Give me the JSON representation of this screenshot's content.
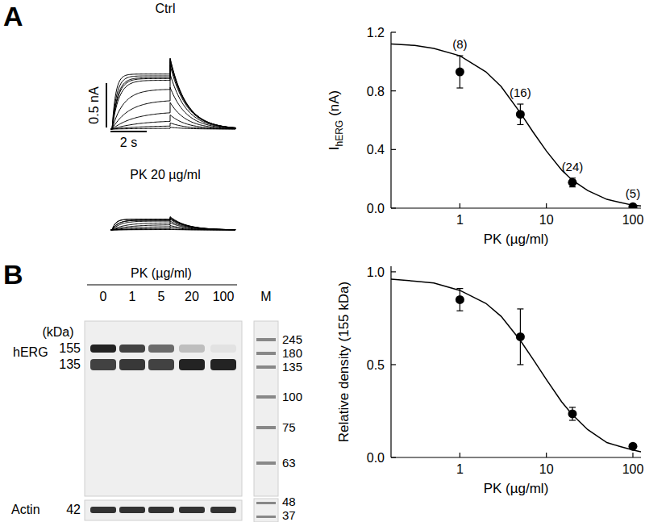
{
  "panel_labels": [
    "A",
    "B"
  ],
  "traces": {
    "conditions": [
      {
        "label": "Ctrl",
        "step_nA": [
          0.62,
          0.6,
          0.58,
          0.57,
          0.55,
          0.45,
          0.33,
          0.2,
          0.1,
          0.04,
          0.01
        ],
        "tail_nA": [
          0.8,
          0.79,
          0.78,
          0.76,
          0.72,
          0.62,
          0.47,
          0.3,
          0.16,
          0.07,
          0.02
        ]
      },
      {
        "label": "PK 20 µg/ml",
        "step_nA": [
          0.12,
          0.12,
          0.11,
          0.11,
          0.1,
          0.08,
          0.06,
          0.04,
          0.02,
          0.01,
          0.005
        ],
        "tail_nA": [
          0.15,
          0.14,
          0.14,
          0.13,
          0.12,
          0.1,
          0.08,
          0.05,
          0.03,
          0.01,
          0.005
        ]
      }
    ],
    "step_s": 3.2,
    "tail_s": 3.6,
    "scale_bar": {
      "current": 0.5,
      "current_label": "0.5 nA",
      "time": 2,
      "time_label": "2 s"
    }
  },
  "blot": {
    "treatment_label": "PK (µg/ml)",
    "lanes": [
      0,
      1,
      5,
      20,
      100
    ],
    "marker_label": "M",
    "size_unit_label": "(kDa)",
    "protein_label": "hERG",
    "bands": [
      {
        "kDa": 155,
        "relative_intensity": [
          1,
          0.85,
          0.65,
          0.24,
          0.06
        ]
      },
      {
        "kDa": 135,
        "relative_intensity": [
          0.85,
          0.9,
          0.85,
          1,
          1
        ]
      }
    ],
    "ladder_kDa": [
      245,
      180,
      135,
      100,
      75,
      63
    ],
    "loading_control": {
      "label": "Actin",
      "kDa": 42,
      "relative_intensity": [
        1,
        1,
        1,
        1,
        1
      ],
      "ladder_kDa": [
        48,
        37
      ]
    }
  },
  "chart_data": [
    {
      "type": "scatter",
      "x_label": "PK (µg/ml)",
      "y_label": "I",
      "y_label_subscript": "hERG",
      "y_label_unit": "(nA)",
      "log": "x",
      "xlim": [
        0.16,
        124
      ],
      "xticks": [
        1,
        10,
        100
      ],
      "ylim": [
        0,
        1.2
      ],
      "yticks": [
        {
          "value": 0,
          "label": "0.0"
        },
        0.4,
        0.8,
        1.2
      ],
      "x": [
        1,
        5,
        20,
        100
      ],
      "series": [
        {
          "type": "scatter",
          "marker": "circle",
          "color": "#000000",
          "values": [
            0.93,
            0.64,
            0.175,
            0.01
          ],
          "errors": [
            0.11,
            0.07,
            0.03,
            0.01
          ]
        },
        {
          "type": "line",
          "color": "#000000",
          "x": [
            0.16,
            0.3,
            0.5,
            1,
            2,
            3,
            5,
            7,
            10,
            15,
            20,
            30,
            50,
            70,
            100,
            124
          ],
          "values": [
            1.12,
            1.11,
            1.09,
            1.04,
            0.93,
            0.83,
            0.65,
            0.52,
            0.39,
            0.26,
            0.19,
            0.12,
            0.06,
            0.04,
            0.02,
            0.015
          ]
        }
      ],
      "annotations": [
        "(8)",
        "(16)",
        "(24)",
        "(5)"
      ]
    },
    {
      "type": "scatter",
      "x_label": "PK (µg/ml)",
      "y_label": "Relative density (155 kDa)",
      "log": "x",
      "xlim": [
        0.16,
        124
      ],
      "xticks": [
        1,
        10,
        100
      ],
      "ylim": [
        0,
        1.03
      ],
      "yticks": [
        {
          "value": 0,
          "label": "0.0"
        },
        0.5,
        {
          "value": 1,
          "label": "1.0"
        }
      ],
      "x": [
        1,
        5,
        20,
        100
      ],
      "series": [
        {
          "type": "scatter",
          "marker": "circle",
          "color": "#000000",
          "values": [
            0.85,
            0.65,
            0.235,
            0.06
          ],
          "errors": [
            0.06,
            0.15,
            0.035,
            0.008
          ]
        },
        {
          "type": "line",
          "color": "#000000",
          "x": [
            0.16,
            0.3,
            0.5,
            1,
            2,
            3,
            5,
            7,
            10,
            15,
            20,
            30,
            50,
            70,
            100,
            124
          ],
          "values": [
            0.96,
            0.95,
            0.94,
            0.9,
            0.83,
            0.76,
            0.63,
            0.53,
            0.42,
            0.3,
            0.23,
            0.15,
            0.08,
            0.06,
            0.04,
            0.03
          ]
        }
      ]
    }
  ]
}
